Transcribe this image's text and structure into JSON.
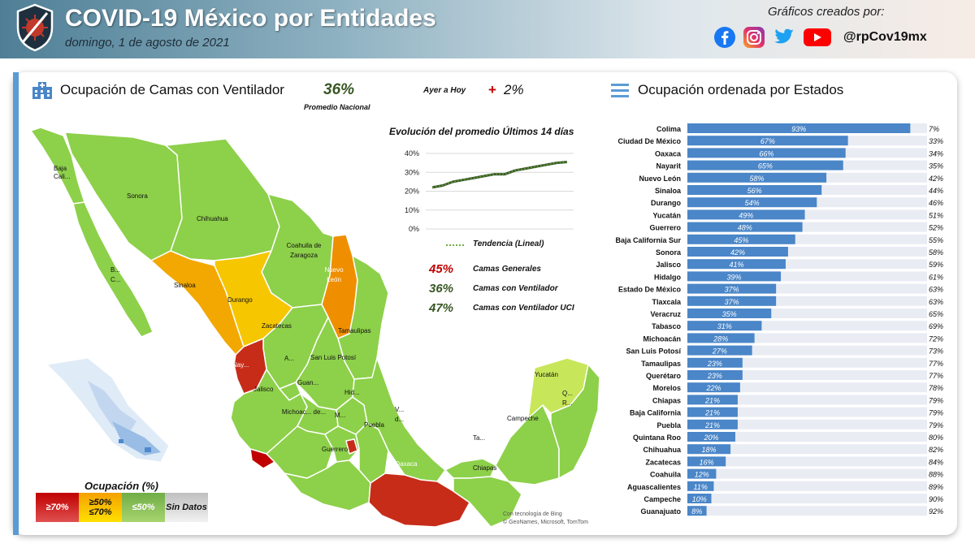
{
  "header": {
    "title": "COVID-19 México por Entidades",
    "date": "domingo, 1 de agosto de 2021",
    "credit": "Gráficos creados por:",
    "handle": "@rpCov19mx",
    "social_icons": [
      "facebook-icon",
      "instagram-icon",
      "twitter-icon",
      "youtube-icon"
    ]
  },
  "left_panel": {
    "title": "Ocupación de Camas con Ventilador",
    "national_value": "36%",
    "national_label": "Promedio Nacional",
    "change_label": "Ayer a Hoy",
    "change_sign": "+",
    "change_value": "2%"
  },
  "right_panel": {
    "title": "Ocupación ordenada por Estados"
  },
  "trend": {
    "title": "Evolución del promedio Últimos 14 días",
    "legend_label": "Tendencia (Lineal)",
    "stats": [
      {
        "value": "45%",
        "label": "Camas Generales",
        "color": "#c00000"
      },
      {
        "value": "36%",
        "label": "Camas con Ventilador",
        "color": "#375623"
      },
      {
        "value": "47%",
        "label": "Camas con Ventilador UCI",
        "color": "#375623"
      }
    ]
  },
  "map_labels": [
    "Baja Cali...",
    "Sonora",
    "Chihuahua",
    "Coahuila de Zaragoza",
    "Nuevo León",
    "B... C...",
    "Sinaloa",
    "Durango",
    "Zacatecas",
    "Tamaulipas",
    "A...",
    "San Luis Potosí",
    "Nay...",
    "Guan...",
    "Jalisco",
    "Hid...",
    "Michoac... de...",
    "M...",
    "Puebla",
    "V... d...",
    "Guerrero",
    "Oaxaca",
    "Ta...",
    "Chiapas",
    "Campeche",
    "Yucatán",
    "Q... R..."
  ],
  "legend": {
    "title": "Ocupación (%)",
    "items": [
      {
        "label": "≥70%",
        "colors": [
          "#c00000",
          "#e05050"
        ],
        "text_color": "#ffffff"
      },
      {
        "label": "≥50% ≤70%",
        "colors": [
          "#f4a000",
          "#ffe000"
        ],
        "text_color": "#111111"
      },
      {
        "label": "≤50%",
        "colors": [
          "#70ad47",
          "#a8d46f"
        ],
        "text_color": "#ffffff"
      },
      {
        "label": "Sin Datos",
        "colors": [
          "#bfbfbf",
          "#f2f2f2"
        ],
        "text_color": "#111111"
      }
    ]
  },
  "bing_credit": [
    "Con tecnología de Bing",
    "© GeoNames, Microsoft, TomTom"
  ],
  "colors": {
    "high": "#c00000",
    "mid_dark": "#ef8f00",
    "mid": "#f6c600",
    "low": "#8dd04a",
    "low_light": "#c8e65a",
    "bar": "#4a86c8",
    "bar_remaining": "#e9ecf3"
  },
  "chart_data": [
    {
      "type": "line",
      "title": "Evolución del promedio Últimos 14 días",
      "x": [
        1,
        2,
        3,
        4,
        5,
        6,
        7,
        8,
        9,
        10,
        11,
        12,
        13,
        14
      ],
      "series": [
        {
          "name": "Tendencia (Lineal)",
          "values": [
            22,
            23,
            25,
            26,
            27,
            28,
            29,
            29,
            31,
            32,
            33,
            34,
            35,
            35.5
          ]
        }
      ],
      "yticks": [
        "40%",
        "30%",
        "20%",
        "10%",
        "0%"
      ],
      "ylim": [
        0,
        40
      ],
      "grid": true
    },
    {
      "type": "bar",
      "orientation": "horizontal",
      "title": "Ocupación ordenada por Estados",
      "categories": [
        "Colima",
        "Ciudad De México",
        "Oaxaca",
        "Nayarit",
        "Nuevo León",
        "Sinaloa",
        "Durango",
        "Yucatán",
        "Guerrero",
        "Baja California Sur",
        "Sonora",
        "Jalisco",
        "Hidalgo",
        "Estado De México",
        "Tlaxcala",
        "Veracruz",
        "Tabasco",
        "Michoacán",
        "San Luis Potosí",
        "Tamaulipas",
        "Querétaro",
        "Morelos",
        "Chiapas",
        "Baja California",
        "Puebla",
        "Quintana Roo",
        "Chihuahua",
        "Zacatecas",
        "Coahuila",
        "Aguascalientes",
        "Campeche",
        "Guanajuato"
      ],
      "values": [
        93,
        67,
        66,
        65,
        58,
        56,
        54,
        49,
        48,
        45,
        42,
        41,
        39,
        37,
        37,
        35,
        31,
        28,
        27,
        23,
        23,
        22,
        21,
        21,
        21,
        20,
        18,
        16,
        12,
        11,
        10,
        8
      ],
      "value_labels": [
        "93%",
        "67%",
        "66%",
        "65%",
        "58%",
        "56%",
        "54%",
        "49%",
        "48%",
        "45%",
        "42%",
        "41%",
        "39%",
        "37%",
        "37%",
        "35%",
        "31%",
        "28%",
        "27%",
        "23%",
        "23%",
        "22%",
        "21%",
        "21%",
        "21%",
        "20%",
        "18%",
        "16%",
        "12%",
        "11%",
        "10%",
        "8%"
      ],
      "remaining_labels": [
        "7%",
        "33%",
        "34%",
        "35%",
        "42%",
        "44%",
        "46%",
        "51%",
        "52%",
        "55%",
        "58%",
        "59%",
        "61%",
        "63%",
        "63%",
        "65%",
        "69%",
        "72%",
        "73%",
        "77%",
        "77%",
        "78%",
        "79%",
        "79%",
        "79%",
        "80%",
        "82%",
        "84%",
        "88%",
        "89%",
        "90%",
        "92%"
      ],
      "xlim": [
        0,
        100
      ]
    }
  ]
}
